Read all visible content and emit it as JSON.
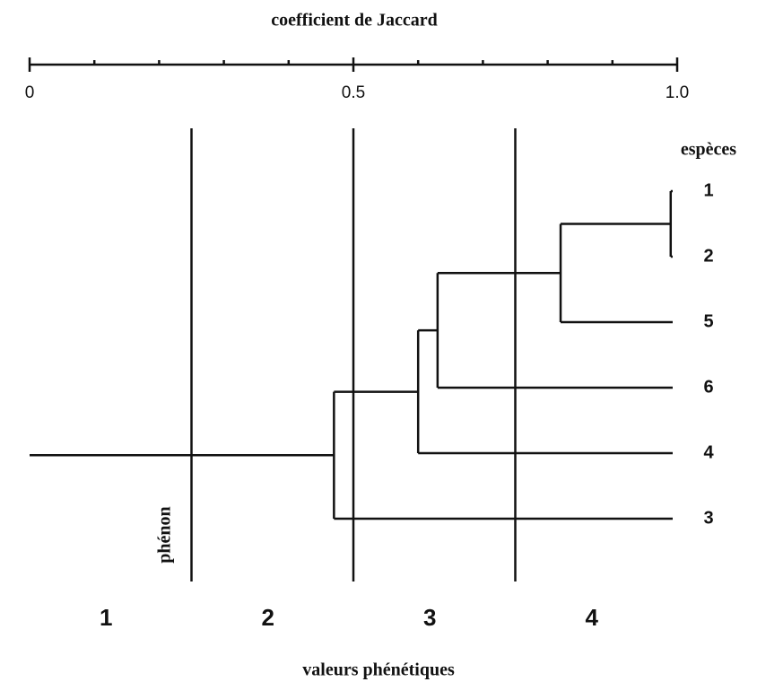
{
  "chart_data": {
    "type": "dendrogram",
    "title": "coefficient de Jaccard",
    "xlim": [
      0,
      1
    ],
    "xticks": [
      0,
      0.5,
      {
        "value": 1,
        "label": "1.0"
      }
    ],
    "minor_xticks": [
      0.1,
      0.2,
      0.3,
      0.4,
      0.6,
      0.7,
      0.8,
      0.9
    ],
    "species_label": "espèces",
    "species": [
      "1",
      "2",
      "5",
      "6",
      "4",
      "3"
    ],
    "merges": [
      {
        "items": [
          0,
          1
        ],
        "height": 0.99
      },
      {
        "items": [
          6,
          2
        ],
        "height": 0.82
      },
      {
        "items": [
          7,
          3
        ],
        "height": 0.63
      },
      {
        "items": [
          8,
          4
        ],
        "height": 0.6
      },
      {
        "items": [
          9,
          5
        ],
        "height": 0.47
      }
    ],
    "phenon_label": "phénon",
    "phenon_lines": [
      0.25,
      0.5,
      0.75
    ],
    "phenon_groups": [
      "1",
      "2",
      "3",
      "4"
    ],
    "footer": "valeurs phénétiques"
  }
}
